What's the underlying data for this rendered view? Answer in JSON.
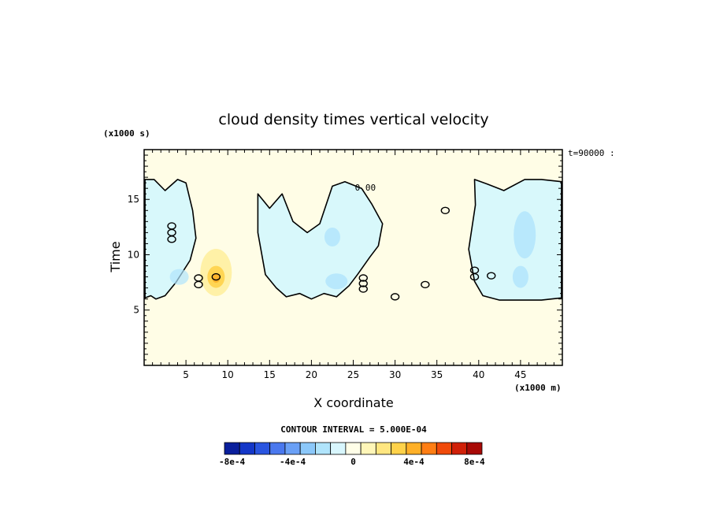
{
  "chart_data": {
    "type": "heatmap",
    "title": "cloud density times vertical velocity",
    "xlabel": "X coordinate",
    "ylabel": "Time",
    "x_unit_label": "(x1000 m)",
    "y_unit_label": "(x1000 s)",
    "time_label": "t=90000 :",
    "xlim": [
      0,
      50
    ],
    "ylim": [
      0,
      19.5
    ],
    "x_ticks": [
      5,
      10,
      15,
      20,
      25,
      30,
      35,
      40,
      45
    ],
    "y_ticks": [
      5,
      10,
      15
    ],
    "contour_interval_label": "CONTOUR INTERVAL = 5.000E-04",
    "contour_value_label": "0.00",
    "zero_contour_value": 0,
    "colorbar": {
      "colors": [
        "#0a1f9c",
        "#1437c8",
        "#2a55e0",
        "#4a78ee",
        "#6aa0f6",
        "#8cc8fa",
        "#b0e4fc",
        "#d8f6fd",
        "#fffee8",
        "#fff6b8",
        "#ffe680",
        "#ffd24a",
        "#ffb028",
        "#ff7e14",
        "#f04a0a",
        "#d02008",
        "#a80a06"
      ],
      "tick_labels": [
        "-8e-4",
        "-4e-4",
        "0",
        "4e-4",
        "8e-4"
      ],
      "tick_values": [
        -0.0008,
        -0.0004,
        0,
        0.0004,
        0.0008
      ]
    },
    "background_value_color": "#fffde6",
    "negative_region_color": "#d8f8fb",
    "regions": [
      {
        "name": "negative-updraft-band-1",
        "sign": "negative",
        "x": [
          0.1,
          1.2,
          2.5,
          4.0,
          5.0,
          5.8,
          6.2,
          5.5,
          3.8,
          2.5,
          1.4,
          0.8,
          0.1
        ],
        "y": [
          16.8,
          16.8,
          15.8,
          16.8,
          16.5,
          14.0,
          11.5,
          9.5,
          7.5,
          6.3,
          6.0,
          6.3,
          6.1
        ]
      },
      {
        "name": "negative-updraft-band-2",
        "sign": "negative",
        "x": [
          13.6,
          15.0,
          16.5,
          17.8,
          19.5,
          21.0,
          22.5,
          24.0,
          26.0,
          27.2,
          28.5,
          28.0,
          27.0,
          25.5,
          24.5,
          23.0,
          21.5,
          20.0,
          18.6,
          17.0,
          15.8,
          14.5,
          13.6
        ],
        "y": [
          15.5,
          14.2,
          15.5,
          13.0,
          12.0,
          12.8,
          16.2,
          16.6,
          16.0,
          14.6,
          12.8,
          10.8,
          9.8,
          8.2,
          7.2,
          6.2,
          6.5,
          6.0,
          6.5,
          6.2,
          7.0,
          8.2,
          12.0
        ]
      },
      {
        "name": "negative-updraft-band-3",
        "sign": "negative",
        "x": [
          39.5,
          41.0,
          43.0,
          45.5,
          47.5,
          49.9,
          49.9,
          47.5,
          45.0,
          42.5,
          40.5,
          39.5,
          38.8,
          39.6
        ],
        "y": [
          16.8,
          16.4,
          15.8,
          16.8,
          16.8,
          16.6,
          6.1,
          5.9,
          5.9,
          5.9,
          6.3,
          7.6,
          10.5,
          14.5
        ]
      }
    ]
  }
}
